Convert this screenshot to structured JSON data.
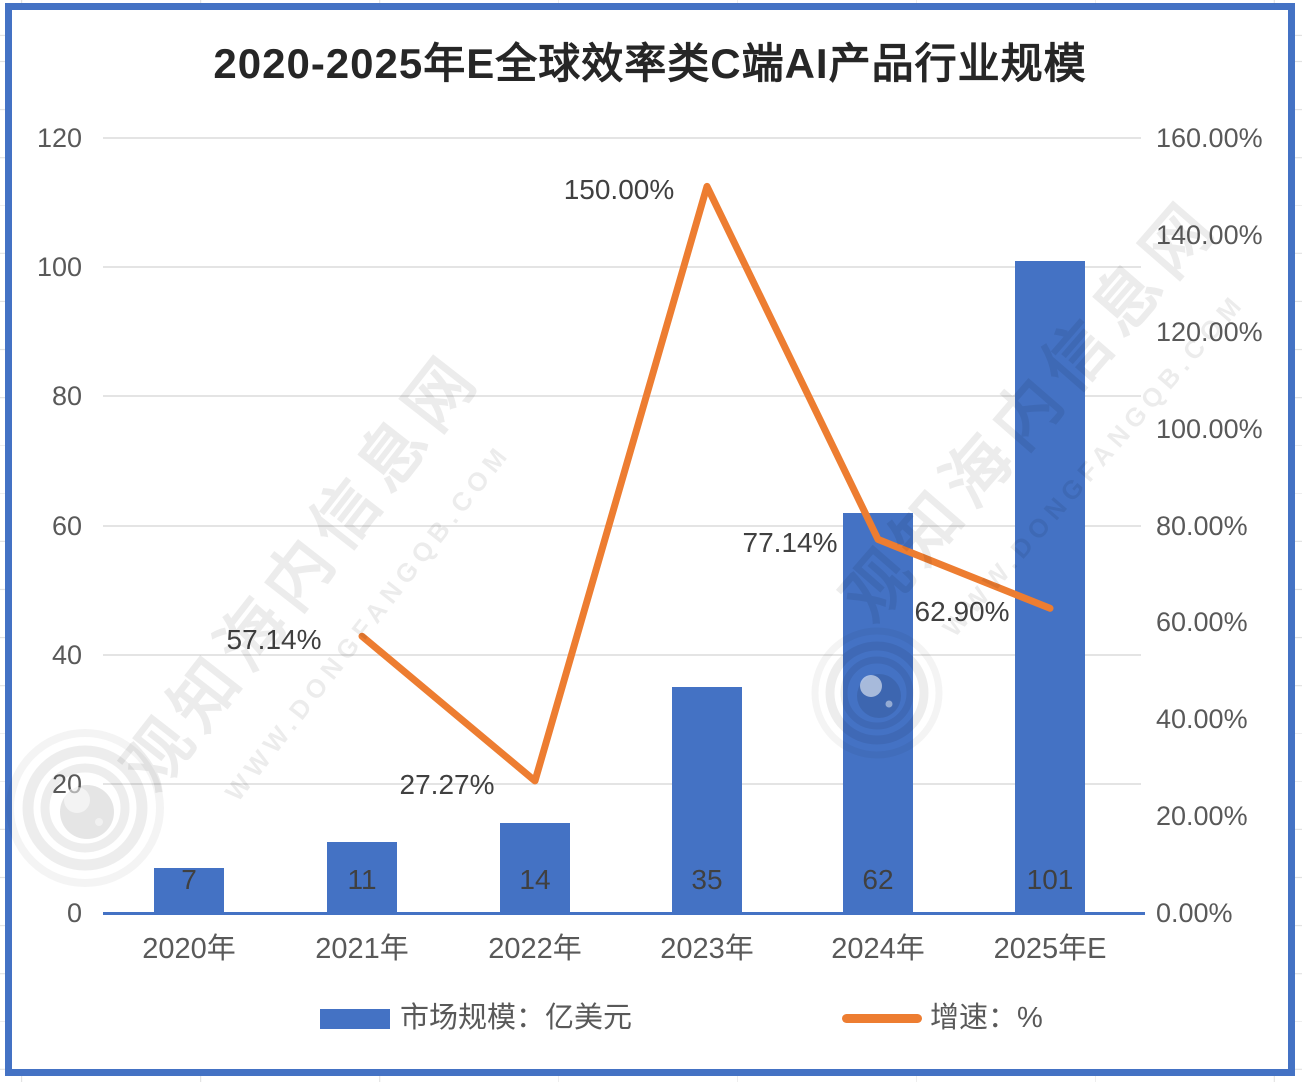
{
  "watermark": {
    "site_name": "观知海内信息网",
    "site_url": "WWW.DONGFANGQB.COM"
  },
  "chart_data": {
    "type": "combo-bar-line",
    "title": "2020-2025年E全球效率类C端AI产品行业规模",
    "categories": [
      "2020年",
      "2021年",
      "2022年",
      "2023年",
      "2024年",
      "2025年E"
    ],
    "series": [
      {
        "name": "市场规模：亿美元",
        "type": "bar",
        "color": "#4472C4",
        "axis": "left",
        "values": [
          7,
          11,
          14,
          35,
          62,
          101
        ],
        "data_labels": [
          "7",
          "11",
          "14",
          "35",
          "62",
          "101"
        ]
      },
      {
        "name": "增速：%",
        "type": "line",
        "color": "#ED7D31",
        "axis": "right",
        "values": [
          null,
          57.14,
          27.27,
          150.0,
          77.14,
          62.9
        ],
        "data_labels": [
          "",
          "57.14%",
          "27.27%",
          "150.00%",
          "77.14%",
          "62.90%"
        ]
      }
    ],
    "left_axis": {
      "min": 0,
      "max": 120,
      "ticks": [
        0,
        20,
        40,
        60,
        80,
        100,
        120
      ]
    },
    "right_axis": {
      "min": "0.00%",
      "max": "160.00%",
      "ticks": [
        "0.00%",
        "20.00%",
        "40.00%",
        "60.00%",
        "80.00%",
        "100.00%",
        "120.00%",
        "140.00%",
        "160.00%"
      ]
    },
    "gridlines": true,
    "legend_position": "bottom"
  }
}
